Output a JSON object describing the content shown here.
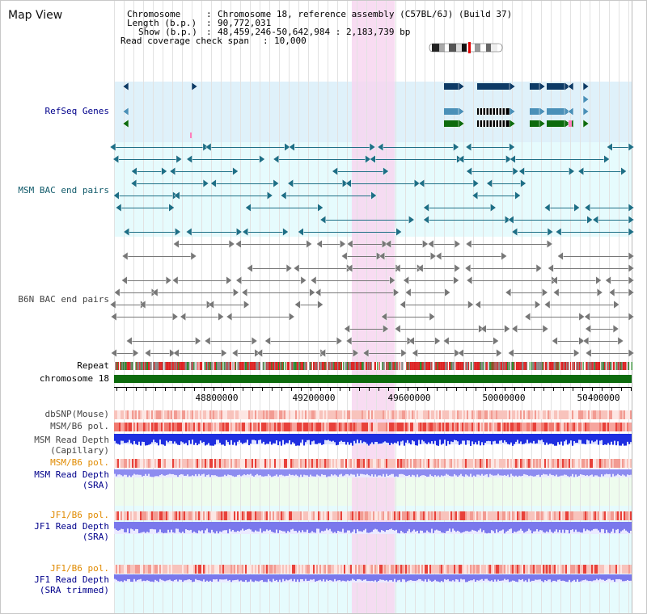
{
  "title": "Map View",
  "info": {
    "chromosome_key": "Chromosome",
    "chromosome_val": "Chromosome 18, reference assembly (C57BL/6J) (Build 37)",
    "length_key": "Length (b.p.)",
    "length_val": "90,772,031",
    "show_key": "Show (b.p.)",
    "show_val": "48,459,246-50,642,984 : 2,183,739 bp",
    "coverage_key": "Read coverage check span",
    "coverage_val": "10,000"
  },
  "tracks": {
    "refseq": "RefSeq Genes",
    "msm_bac": "MSM BAC end pairs",
    "b6n_bac": "B6N BAC end pairs",
    "repeat": "Repeat",
    "chromosome": "chromosome 18",
    "dbsnp": "dbSNP(Mouse)",
    "msm_b6_pol_1": "MSM/B6 pol.",
    "msm_read_depth_cap_1": "MSM Read Depth",
    "msm_read_depth_cap_2": "(Capillary)",
    "msm_b6_pol_2": "MSM/B6 pol.",
    "msm_read_depth_sra_1": "MSM Read Depth",
    "msm_read_depth_sra_2": "(SRA)",
    "jf1_b6_pol_1": "JF1/B6 pol.",
    "jf1_read_depth_sra_1": "JF1 Read Depth",
    "jf1_read_depth_sra_2": "(SRA)",
    "jf1_b6_pol_2": "JF1/B6 pol.",
    "jf1_read_depth_trim_1": "JF1 Read Depth",
    "jf1_read_depth_trim_2": "(SRA trimmed)"
  },
  "axis": {
    "ticks": [
      "48800000",
      "49200000",
      "49600000",
      "50000000",
      "50400000"
    ]
  },
  "colors": {
    "refseq_bg": "#dff1fa",
    "bac_bg": "#e6fbfd",
    "highlight": "#f7d6f0",
    "chromosome_bar": "#0d6b0d",
    "refseq_navy": "#0d3b66",
    "refseq_teal": "#4a90b8",
    "refseq_green": "#0d6b0d"
  }
}
